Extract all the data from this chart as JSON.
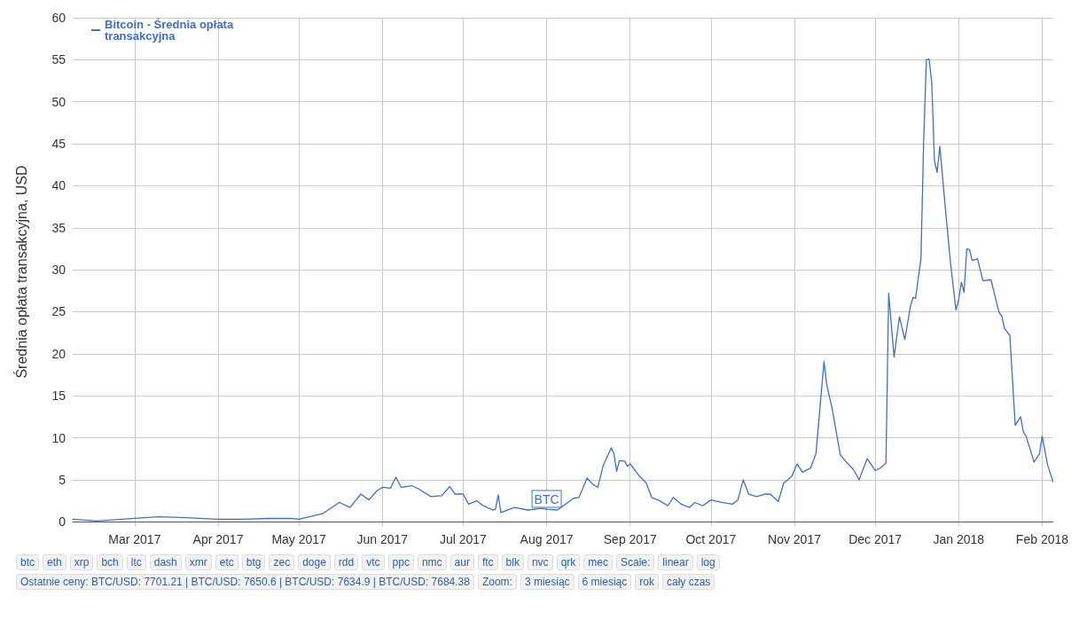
{
  "chart_data": {
    "type": "line",
    "ylabel": "Średnia opłata transakcyjna, USD",
    "legend": "top left",
    "grid": true,
    "marker": "none",
    "line_style": "solid",
    "xlim": [
      "2017-02-06",
      "2018-02-05"
    ],
    "xticks": [
      {
        "value": "2017-03-01",
        "label": "Mar 2017"
      },
      {
        "value": "2017-04-01",
        "label": "Apr 2017"
      },
      {
        "value": "2017-05-01",
        "label": "May 2017"
      },
      {
        "value": "2017-06-01",
        "label": "Jun 2017"
      },
      {
        "value": "2017-07-01",
        "label": "Jul 2017"
      },
      {
        "value": "2017-08-01",
        "label": "Aug 2017"
      },
      {
        "value": "2017-09-01",
        "label": "Sep 2017"
      },
      {
        "value": "2017-10-01",
        "label": "Oct 2017"
      },
      {
        "value": "2017-11-01",
        "label": "Nov 2017"
      },
      {
        "value": "2017-12-01",
        "label": "Dec 2017"
      },
      {
        "value": "2018-01-01",
        "label": "Jan 2018"
      },
      {
        "value": "2018-02-01",
        "label": "Feb 2018"
      }
    ],
    "ylim": [
      -0.5,
      60
    ],
    "yticks": [
      0,
      5,
      10,
      15,
      20,
      25,
      30,
      35,
      40,
      45,
      50,
      55,
      60
    ],
    "series": [
      {
        "name": "Bitcoin - Średnia opłata transakcyjna",
        "color": "#3d6fcc",
        "x": [
          "2017-02-06",
          "2017-02-15",
          "2017-03-01",
          "2017-03-10",
          "2017-03-20",
          "2017-04-01",
          "2017-04-10",
          "2017-04-20",
          "2017-04-28",
          "2017-05-01",
          "2017-05-10",
          "2017-05-16",
          "2017-05-20",
          "2017-05-24",
          "2017-05-27",
          "2017-05-30",
          "2017-06-01",
          "2017-06-04",
          "2017-06-06",
          "2017-06-08",
          "2017-06-12",
          "2017-06-15",
          "2017-06-19",
          "2017-06-23",
          "2017-06-26",
          "2017-06-28",
          "2017-07-01",
          "2017-07-03",
          "2017-07-06",
          "2017-07-08",
          "2017-07-12",
          "2017-07-13",
          "2017-07-14",
          "2017-07-15",
          "2017-07-20",
          "2017-07-25",
          "2017-07-30",
          "2017-08-01",
          "2017-08-05",
          "2017-08-11",
          "2017-08-13",
          "2017-08-16",
          "2017-08-18",
          "2017-08-20",
          "2017-08-22",
          "2017-08-25",
          "2017-08-26",
          "2017-08-27",
          "2017-08-28",
          "2017-08-30",
          "2017-08-31",
          "2017-09-01",
          "2017-09-04",
          "2017-09-07",
          "2017-09-09",
          "2017-09-12",
          "2017-09-15",
          "2017-09-17",
          "2017-09-20",
          "2017-09-23",
          "2017-09-25",
          "2017-09-28",
          "2017-10-01",
          "2017-10-05",
          "2017-10-09",
          "2017-10-11",
          "2017-10-13",
          "2017-10-15",
          "2017-10-18",
          "2017-10-21",
          "2017-10-23",
          "2017-10-26",
          "2017-10-28",
          "2017-10-31",
          "2017-11-02",
          "2017-11-04",
          "2017-11-07",
          "2017-11-09",
          "2017-11-12",
          "2017-11-13",
          "2017-11-15",
          "2017-11-18",
          "2017-11-20",
          "2017-11-23",
          "2017-11-25",
          "2017-11-28",
          "2017-12-01",
          "2017-12-03",
          "2017-12-05",
          "2017-12-06",
          "2017-12-08",
          "2017-12-10",
          "2017-12-12",
          "2017-12-14",
          "2017-12-15",
          "2017-12-16",
          "2017-12-18",
          "2017-12-19",
          "2017-12-20",
          "2017-12-21",
          "2017-12-22",
          "2017-12-23",
          "2017-12-24",
          "2017-12-25",
          "2017-12-27",
          "2017-12-29",
          "2017-12-31",
          "2018-01-01",
          "2018-01-02",
          "2018-01-03",
          "2018-01-04",
          "2018-01-05",
          "2018-01-06",
          "2018-01-08",
          "2018-01-10",
          "2018-01-13",
          "2018-01-16",
          "2018-01-17",
          "2018-01-18",
          "2018-01-20",
          "2018-01-22",
          "2018-01-24",
          "2018-01-25",
          "2018-01-26",
          "2018-01-29",
          "2018-01-31",
          "2018-02-01",
          "2018-02-03",
          "2018-02-04",
          "2018-02-05"
        ],
        "values": [
          0.3,
          0.1,
          0.4,
          0.6,
          0.5,
          0.3,
          0.3,
          0.4,
          0.4,
          0.3,
          1.0,
          2.3,
          1.7,
          3.3,
          2.6,
          3.7,
          4.1,
          4.0,
          5.3,
          4.1,
          4.3,
          3.8,
          3.0,
          3.1,
          4.2,
          3.3,
          3.3,
          2.1,
          2.5,
          2.0,
          1.4,
          1.5,
          3.2,
          1.1,
          1.7,
          1.4,
          1.6,
          1.5,
          1.4,
          2.8,
          2.9,
          5.2,
          4.5,
          4.1,
          6.7,
          8.8,
          8.1,
          6.0,
          7.3,
          7.2,
          6.6,
          6.9,
          5.6,
          4.6,
          2.9,
          2.5,
          1.9,
          2.9,
          2.1,
          1.7,
          2.3,
          1.9,
          2.6,
          2.3,
          2.1,
          2.6,
          5.0,
          3.3,
          3.0,
          3.3,
          3.3,
          2.4,
          4.6,
          5.4,
          6.9,
          5.9,
          6.4,
          8.1,
          19.1,
          16.3,
          13.5,
          8.0,
          7.2,
          6.2,
          5.0,
          7.5,
          6.1,
          6.4,
          7.0,
          27.2,
          19.6,
          24.4,
          21.7,
          25.5,
          26.7,
          26.6,
          31.4,
          45.4,
          55.0,
          55.1,
          52.3,
          43.0,
          41.6,
          44.7,
          37.5,
          30.7,
          25.2,
          26.4,
          28.5,
          27.3,
          32.5,
          32.4,
          31.1,
          31.3,
          28.7,
          28.8,
          24.9,
          24.5,
          23.0,
          22.2,
          11.5,
          12.5,
          10.7,
          10.2,
          7.1,
          8.1,
          10.2,
          6.8,
          5.8,
          4.8
        ]
      }
    ],
    "annotations": [
      {
        "text": "BTC",
        "x": "2017-08-01",
        "y": 1.5
      },
      "btc",
      "eth",
      "xrp",
      "bch",
      "ltc",
      "dash",
      "xmr",
      "etc",
      "btg",
      "zec",
      "doge",
      "rdd",
      "vtc",
      "ppc",
      "nmc",
      "aur",
      "ftc",
      "blk",
      "nvc",
      "qrk",
      "mec",
      "Scale:",
      "linear",
      "log",
      "Ostatnie ceny: BTC/USD: 7701.21 | BTC/USD: 7650.6 | BTC/USD: 7634.9 | BTC/USD: 7684.38",
      "Zoom:",
      "3 miesiąc",
      "6 miesiąc",
      "rok",
      "cały czas"
    ]
  }
}
